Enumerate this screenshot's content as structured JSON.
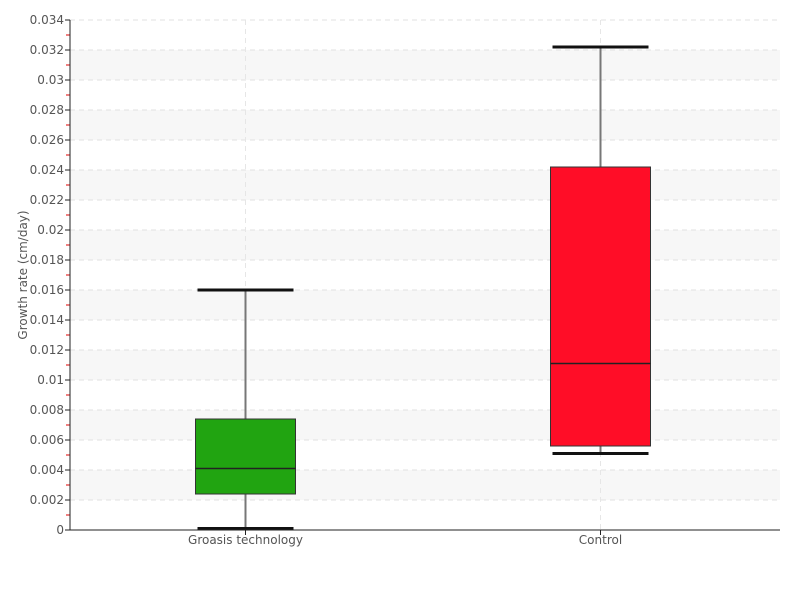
{
  "chart_data": {
    "type": "boxplot",
    "title": "",
    "xlabel": "",
    "ylabel": "Growth rate (cm/day)",
    "ylim": [
      0,
      0.034
    ],
    "ytick_step": 0.002,
    "yticks": [
      "0",
      "0.002",
      "0.004",
      "0.006",
      "0.008",
      "0.01",
      "0.012",
      "0.014",
      "0.016",
      "0.018",
      "0.02",
      "0.022",
      "0.024",
      "0.026",
      "0.028",
      "0.03",
      "0.032",
      "0.034"
    ],
    "grid": true,
    "legend": "none",
    "categories": [
      "Groasis technology",
      "Control"
    ],
    "boxes": [
      {
        "category": "Groasis technology",
        "min": 0.0001,
        "q1": 0.0024,
        "median": 0.0041,
        "q3": 0.0074,
        "max": 0.016,
        "color": "#21a411"
      },
      {
        "category": "Control",
        "min": 0.0051,
        "q1": 0.0056,
        "median": 0.0111,
        "q3": 0.0242,
        "max": 0.0322,
        "color": "#ff0d27"
      }
    ]
  }
}
